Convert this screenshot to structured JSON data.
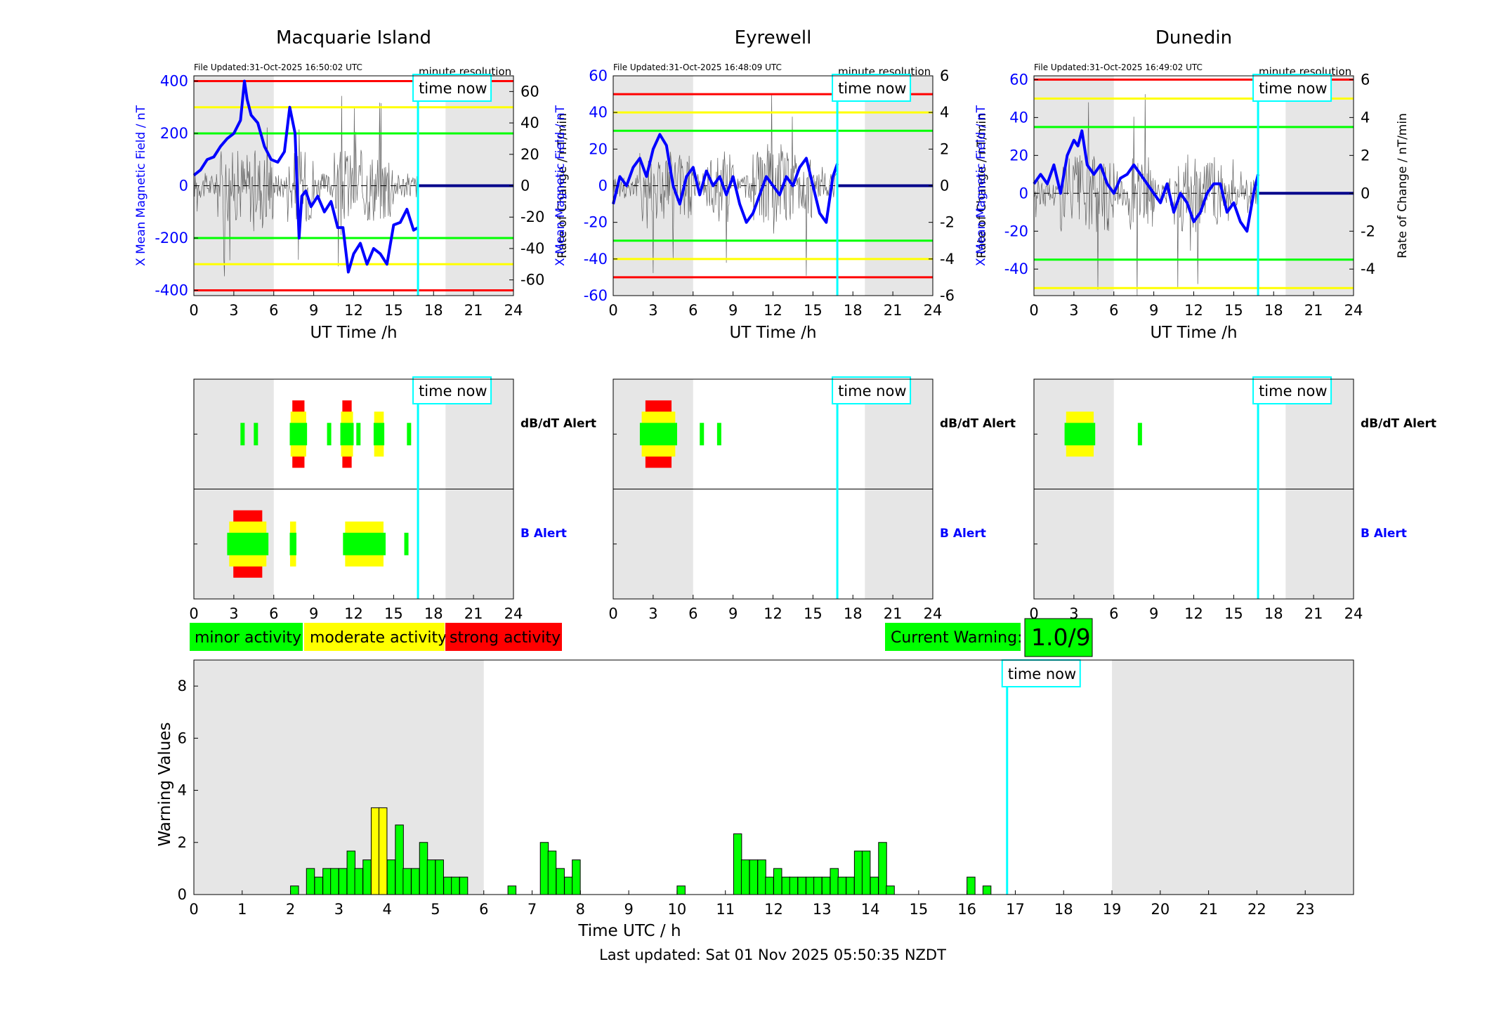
{
  "colors": {
    "minor": "#00ff00",
    "moderate": "#ffff00",
    "strong": "#ff0000",
    "field_line": "#0000ff",
    "rate_line": "#606060",
    "time_now": "#00ffff",
    "shade": "#e6e6e6"
  },
  "stations": [
    {
      "name": "Macquarie Island",
      "file_updated": "File Updated:31-Oct-2025 16:50:02 UTC",
      "resolution": "minute resolution",
      "time_now_label": "time now",
      "left_ylabel": "X Mean Magnetic Field / nT",
      "right_ylabel": "Rate of Change / nT/min",
      "xlabel": "UT Time /h",
      "left_ticks": [
        "400",
        "200",
        "0",
        "-200",
        "-400"
      ],
      "right_ticks": [
        "60",
        "40",
        "20",
        "0",
        "-20",
        "-40",
        "-60"
      ],
      "x_ticks": [
        "0",
        "3",
        "6",
        "9",
        "12",
        "15",
        "18",
        "21",
        "24"
      ],
      "chart_data": {
        "type": "line",
        "xlim": [
          0,
          24
        ],
        "ylim_left": [
          -420,
          420
        ],
        "ylim_right": [
          -70,
          70
        ],
        "threshold_levels": {
          "minor": 200,
          "moderate": 300,
          "strong": 400
        },
        "time_now": 16.83,
        "x": [
          0,
          0.5,
          1,
          1.5,
          2,
          2.5,
          3,
          3.5,
          3.8,
          4,
          4.3,
          4.8,
          5.3,
          5.8,
          6.3,
          6.8,
          7.2,
          7.6,
          7.9,
          8.1,
          8.4,
          8.8,
          9.3,
          9.8,
          10.3,
          10.8,
          11.2,
          11.6,
          12,
          12.5,
          13,
          13.5,
          14,
          14.5,
          15,
          15.5,
          16,
          16.5,
          16.83
        ],
        "y": [
          40,
          60,
          100,
          110,
          150,
          180,
          200,
          250,
          400,
          330,
          270,
          240,
          150,
          100,
          90,
          130,
          300,
          200,
          -200,
          -40,
          -20,
          -80,
          -40,
          -100,
          -60,
          -160,
          -160,
          -330,
          -260,
          -220,
          -300,
          -240,
          -260,
          -300,
          -150,
          -140,
          -90,
          -170,
          -160
        ]
      }
    },
    {
      "name": "Eyrewell",
      "file_updated": "File Updated:31-Oct-2025 16:48:09 UTC",
      "resolution": "minute resolution",
      "time_now_label": "time now",
      "left_ylabel": "X Mean Magnetic Field / nT",
      "right_ylabel": "Rate of Change / nT/min",
      "xlabel": "UT Time /h",
      "left_ticks": [
        "60",
        "40",
        "20",
        "0",
        "-20",
        "-40",
        "-60"
      ],
      "right_ticks": [
        "6",
        "4",
        "2",
        "0",
        "-2",
        "-4",
        "-6"
      ],
      "x_ticks": [
        "0",
        "3",
        "6",
        "9",
        "12",
        "15",
        "18",
        "21",
        "24"
      ],
      "chart_data": {
        "type": "line",
        "xlim": [
          0,
          24
        ],
        "ylim_left": [
          -60,
          60
        ],
        "ylim_right": [
          -6,
          6
        ],
        "threshold_levels": {
          "minor": 30,
          "moderate": 40,
          "strong": 50
        },
        "time_now": 16.83,
        "x": [
          0,
          0.5,
          1,
          1.5,
          2,
          2.5,
          3,
          3.5,
          4,
          4.5,
          5,
          5.5,
          6,
          6.5,
          7,
          7.5,
          8,
          8.5,
          9,
          9.5,
          10,
          10.5,
          11,
          11.5,
          12,
          12.5,
          13,
          13.5,
          14,
          14.5,
          15,
          15.5,
          16,
          16.5,
          16.83
        ],
        "y": [
          -10,
          5,
          0,
          10,
          15,
          5,
          20,
          28,
          22,
          0,
          -10,
          5,
          10,
          -5,
          8,
          0,
          5,
          -5,
          5,
          -10,
          -20,
          -15,
          -5,
          5,
          0,
          -5,
          5,
          0,
          10,
          15,
          0,
          -15,
          -20,
          5,
          12
        ]
      }
    },
    {
      "name": "Dunedin",
      "file_updated": "File Updated:31-Oct-2025 16:49:02 UTC",
      "resolution": "minute resolution",
      "time_now_label": "time now",
      "left_ylabel": "X Mean Magnetic Field / nT",
      "right_ylabel": "Rate of Change / nT/min",
      "xlabel": "UT Time /h",
      "left_ticks": [
        "60",
        "40",
        "20",
        "0",
        "-20",
        "-40"
      ],
      "right_ticks": [
        "6",
        "4",
        "2",
        "0",
        "-2",
        "-4"
      ],
      "x_ticks": [
        "0",
        "3",
        "6",
        "9",
        "12",
        "15",
        "18",
        "21",
        "24"
      ],
      "chart_data": {
        "type": "line",
        "xlim": [
          0,
          24
        ],
        "ylim_left": [
          -54,
          62
        ],
        "ylim_right": [
          -5.4,
          6.2
        ],
        "threshold_levels": {
          "minor": 35,
          "moderate": 50,
          "strong": 60
        },
        "time_now": 16.83,
        "x": [
          0,
          0.5,
          1,
          1.5,
          2,
          2.5,
          3,
          3.3,
          3.6,
          4,
          4.5,
          5,
          5.5,
          6,
          6.5,
          7,
          7.5,
          8,
          8.5,
          9,
          9.5,
          10,
          10.5,
          11,
          11.5,
          12,
          12.5,
          13,
          13.5,
          14,
          14.5,
          15,
          15.5,
          16,
          16.5,
          16.83
        ],
        "y": [
          5,
          10,
          5,
          15,
          0,
          20,
          28,
          25,
          33,
          15,
          10,
          15,
          5,
          0,
          8,
          10,
          15,
          10,
          5,
          0,
          -5,
          5,
          -10,
          0,
          -5,
          -15,
          -10,
          0,
          5,
          5,
          -10,
          -5,
          -15,
          -20,
          0,
          10
        ]
      }
    }
  ],
  "alerts": {
    "db_dt_label": "dB/dT Alert",
    "b_label": "B Alert",
    "time_now_label": "time now",
    "x_ticks": [
      "0",
      "3",
      "6",
      "9",
      "12",
      "15",
      "18",
      "21",
      "24"
    ],
    "chart_data": [
      {
        "type": "bar",
        "station": "Macquarie Island",
        "db_dt": [
          {
            "start": 3.5,
            "end": 3.8,
            "level": "minor"
          },
          {
            "start": 4.5,
            "end": 4.8,
            "level": "minor"
          },
          {
            "start": 7.2,
            "end": 8.5,
            "level": "strong"
          },
          {
            "start": 10.0,
            "end": 10.3,
            "level": "minor"
          },
          {
            "start": 11.0,
            "end": 12.0,
            "level": "strong"
          },
          {
            "start": 12.2,
            "end": 12.5,
            "level": "minor"
          },
          {
            "start": 13.5,
            "end": 14.3,
            "level": "moderate"
          },
          {
            "start": 16.0,
            "end": 16.3,
            "level": "minor"
          }
        ],
        "b": [
          {
            "start": 2.5,
            "end": 5.6,
            "level": "strong"
          },
          {
            "start": 7.2,
            "end": 7.7,
            "level": "moderate"
          },
          {
            "start": 11.2,
            "end": 14.4,
            "level": "moderate"
          },
          {
            "start": 15.8,
            "end": 16.1,
            "level": "minor"
          }
        ]
      },
      {
        "type": "bar",
        "station": "Eyrewell",
        "db_dt": [
          {
            "start": 2.0,
            "end": 4.8,
            "level": "strong"
          },
          {
            "start": 6.5,
            "end": 6.8,
            "level": "minor"
          },
          {
            "start": 7.8,
            "end": 8.1,
            "level": "minor"
          }
        ],
        "b": []
      },
      {
        "type": "bar",
        "station": "Dunedin",
        "db_dt": [
          {
            "start": 2.3,
            "end": 4.6,
            "level": "moderate"
          },
          {
            "start": 7.8,
            "end": 8.1,
            "level": "minor"
          }
        ],
        "b": []
      }
    ]
  },
  "legend": {
    "minor": "minor activity",
    "moderate": "moderate activity",
    "strong": "strong activity"
  },
  "current_warning": {
    "label": "Current Warning:",
    "value": "1.0/9"
  },
  "warning_chart": {
    "ylabel": "Warning Values",
    "xlabel": "Time UTC / h",
    "time_now_label": "time now",
    "y_ticks": [
      "0",
      "2",
      "4",
      "6",
      "8"
    ],
    "x_ticks": [
      "0",
      "1",
      "2",
      "3",
      "4",
      "5",
      "6",
      "7",
      "8",
      "9",
      "10",
      "11",
      "12",
      "13",
      "14",
      "15",
      "16",
      "17",
      "18",
      "19",
      "20",
      "21",
      "22",
      "23"
    ],
    "chart_data": {
      "type": "bar",
      "xlim": [
        0,
        24
      ],
      "ylim": [
        0,
        9
      ],
      "bin_width_h": 0.1667,
      "time_now": 16.83,
      "bars": [
        [
          2.0,
          0.33
        ],
        [
          2.33,
          1.0
        ],
        [
          2.5,
          0.67
        ],
        [
          2.67,
          1.0
        ],
        [
          2.83,
          1.0
        ],
        [
          3.0,
          1.0
        ],
        [
          3.17,
          1.67
        ],
        [
          3.33,
          1.0
        ],
        [
          3.5,
          1.33
        ],
        [
          3.67,
          3.33
        ],
        [
          3.83,
          3.33
        ],
        [
          4.0,
          1.33
        ],
        [
          4.17,
          2.67
        ],
        [
          4.33,
          1.0
        ],
        [
          4.5,
          1.0
        ],
        [
          4.67,
          2.0
        ],
        [
          4.83,
          1.33
        ],
        [
          5.0,
          1.33
        ],
        [
          5.17,
          0.67
        ],
        [
          5.33,
          0.67
        ],
        [
          5.5,
          0.67
        ],
        [
          6.5,
          0.33
        ],
        [
          7.17,
          2.0
        ],
        [
          7.33,
          1.67
        ],
        [
          7.5,
          1.0
        ],
        [
          7.67,
          0.67
        ],
        [
          7.83,
          1.33
        ],
        [
          10.0,
          0.33
        ],
        [
          11.17,
          2.33
        ],
        [
          11.33,
          1.33
        ],
        [
          11.5,
          1.33
        ],
        [
          11.67,
          1.33
        ],
        [
          11.83,
          0.67
        ],
        [
          12.0,
          1.0
        ],
        [
          12.17,
          0.67
        ],
        [
          12.33,
          0.67
        ],
        [
          12.5,
          0.67
        ],
        [
          12.67,
          0.67
        ],
        [
          12.83,
          0.67
        ],
        [
          13.0,
          0.67
        ],
        [
          13.17,
          1.0
        ],
        [
          13.33,
          0.67
        ],
        [
          13.5,
          0.67
        ],
        [
          13.67,
          1.67
        ],
        [
          13.83,
          1.67
        ],
        [
          14.0,
          0.67
        ],
        [
          14.17,
          2.0
        ],
        [
          14.33,
          0.33
        ],
        [
          16.0,
          0.67
        ],
        [
          16.33,
          0.33
        ]
      ],
      "level_thresholds": {
        "moderate": 3.0,
        "strong": 6.0
      }
    }
  },
  "last_updated": "Last updated: Sat 01 Nov 2025 05:50:35 NZDT"
}
